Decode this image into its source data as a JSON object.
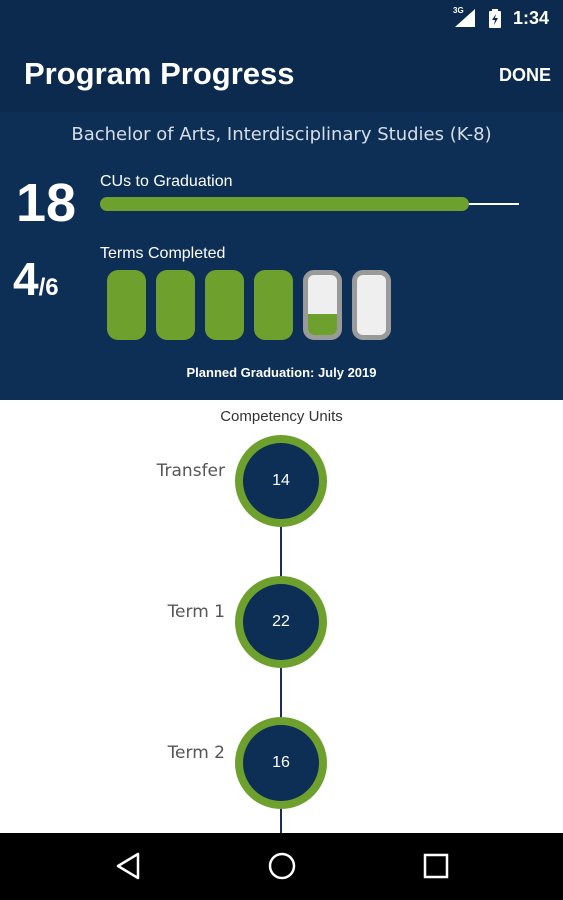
{
  "status_bar": {
    "network": "3G",
    "time": "1:34"
  },
  "app_bar": {
    "title": "Program Progress",
    "done_label": "DONE"
  },
  "summary": {
    "program_name": "Bachelor of Arts, Interdisciplinary Studies (K-8)",
    "cus_to_graduation": {
      "value": "18",
      "label": "CUs to Graduation",
      "progress_fraction": 0.88
    },
    "terms": {
      "completed": "4",
      "total": "/6",
      "label": "Terms Completed",
      "bars": [
        {
          "state": "complete",
          "fill_fraction": 1.0
        },
        {
          "state": "complete",
          "fill_fraction": 1.0
        },
        {
          "state": "complete",
          "fill_fraction": 1.0
        },
        {
          "state": "complete",
          "fill_fraction": 1.0
        },
        {
          "state": "in-progress",
          "fill_fraction": 0.35
        },
        {
          "state": "not-started",
          "fill_fraction": 0.0
        }
      ]
    },
    "planned_graduation": "Planned Graduation: July 2019"
  },
  "timeline": {
    "heading": "Competency Units",
    "nodes": [
      {
        "label": "Transfer",
        "value": "14"
      },
      {
        "label": "Term 1",
        "value": "22"
      },
      {
        "label": "Term 2",
        "value": "16"
      }
    ]
  },
  "colors": {
    "navy": "#0d2f55",
    "header_navy": "#0b2a4e",
    "green": "#6ea02e",
    "gray": "#9a9a9a"
  },
  "icons": {
    "nav": [
      "back-icon",
      "home-icon",
      "recents-icon"
    ]
  }
}
